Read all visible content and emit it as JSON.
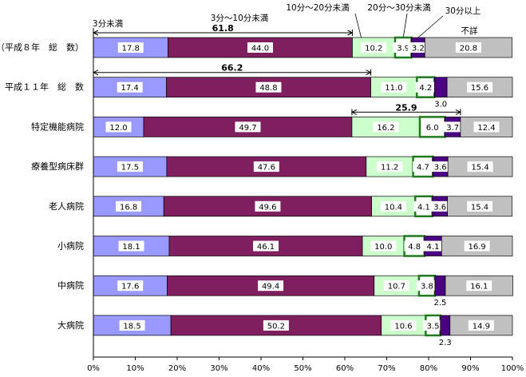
{
  "chart_data": {
    "type": "bar",
    "orientation": "horizontal",
    "stacked": true,
    "xlim": [
      0,
      100
    ],
    "x_ticks": [
      "0%",
      "10%",
      "20%",
      "30%",
      "40%",
      "50%",
      "60%",
      "70%",
      "80%",
      "90%",
      "100%"
    ],
    "series": [
      {
        "name": "3分未満",
        "color": "#9999ff"
      },
      {
        "name": "3分～10分未満",
        "color": "#7f1f5f"
      },
      {
        "name": "10分～20分未満",
        "color": "#ccffcc"
      },
      {
        "name": "20分～30分未満",
        "color": "#ffffff"
      },
      {
        "name": "30分以上",
        "color": "#4b0082"
      },
      {
        "name": "不詳",
        "color": "#c0c0c0"
      }
    ],
    "categories": [
      {
        "label": "（平成８年　総　数）",
        "values": [
          17.8,
          44.0,
          10.2,
          3.9,
          3.2,
          20.8
        ],
        "labels": [
          "17.8",
          "44.0",
          "10.2",
          "3.9",
          "3.2",
          "20.8"
        ]
      },
      {
        "label": "平成１１年　総　数",
        "values": [
          17.4,
          48.8,
          11.0,
          4.2,
          3.0,
          15.6
        ],
        "labels": [
          "17.4",
          "48.8",
          "11.0",
          "4.2",
          "",
          "15.6"
        ],
        "below_label": "3.0"
      },
      {
        "label": "特定機能病院",
        "values": [
          12.0,
          49.7,
          16.2,
          6.0,
          3.7,
          12.4
        ],
        "labels": [
          "12.0",
          "49.7",
          "16.2",
          "6.0",
          "3.7",
          "12.4"
        ]
      },
      {
        "label": "療養型病床群",
        "values": [
          17.5,
          47.6,
          11.2,
          4.7,
          3.6,
          15.4
        ],
        "labels": [
          "17.5",
          "47.6",
          "11.2",
          "4.7",
          "3.6",
          "15.4"
        ]
      },
      {
        "label": "老人病院",
        "values": [
          16.8,
          49.6,
          10.4,
          4.1,
          3.6,
          15.4
        ],
        "labels": [
          "16.8",
          "49.6",
          "10.4",
          "4.1",
          "3.6",
          "15.4"
        ]
      },
      {
        "label": "小病院",
        "values": [
          18.1,
          46.1,
          10.0,
          4.8,
          4.1,
          16.9
        ],
        "labels": [
          "18.1",
          "46.1",
          "10.0",
          "4.8",
          "4.1",
          "16.9"
        ]
      },
      {
        "label": "中病院",
        "values": [
          17.6,
          49.4,
          10.7,
          3.8,
          2.5,
          16.1
        ],
        "labels": [
          "17.6",
          "49.4",
          "10.7",
          "3.8",
          "",
          "16.1"
        ],
        "below_label": "2.5"
      },
      {
        "label": "大病院",
        "values": [
          18.5,
          50.2,
          10.6,
          3.5,
          2.3,
          14.9
        ],
        "labels": [
          "18.5",
          "50.2",
          "10.6",
          "3.5",
          "",
          "14.9"
        ],
        "below_label": "2.3"
      }
    ],
    "brackets": [
      {
        "label": "61.8",
        "category": 0,
        "from": 0,
        "to": 61.8
      },
      {
        "label": "66.2",
        "category": 1,
        "from": 0,
        "to": 66.2
      },
      {
        "label": "25.9",
        "category": 2,
        "from": 61.7,
        "to": 87.6
      }
    ]
  }
}
